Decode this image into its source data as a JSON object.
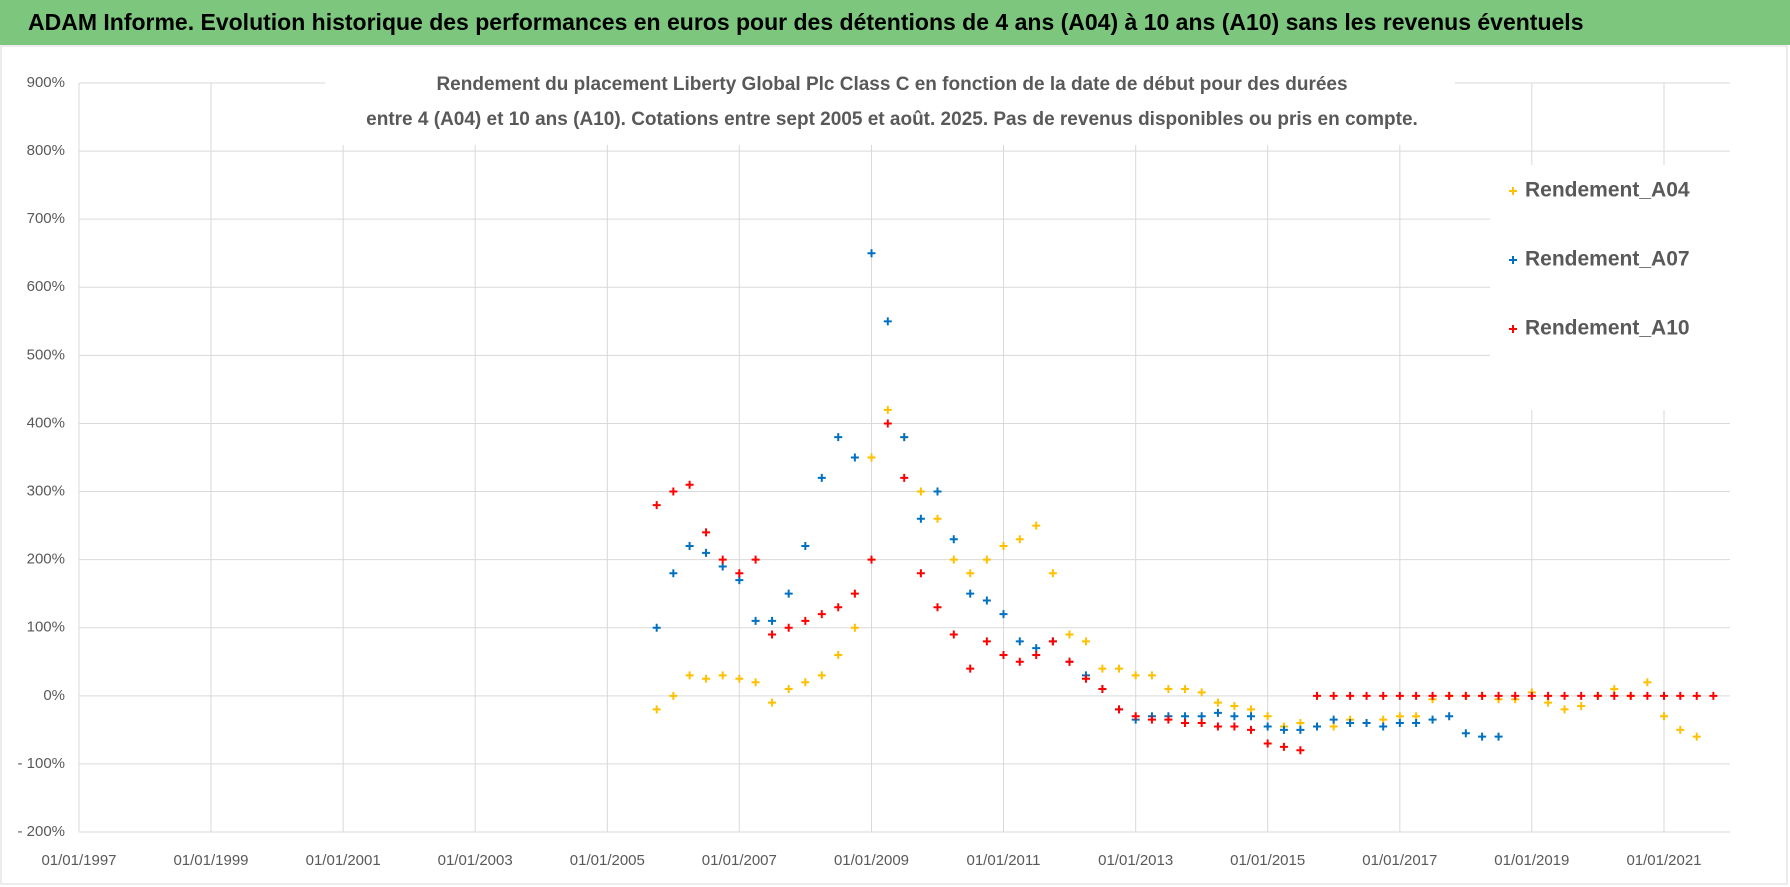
{
  "header_title": "ADAM Informe. Evolution historique des performances en euros pour des détentions de 4 ans (A04) à 10 ans (A10) sans les revenus éventuels",
  "chart_data": {
    "type": "scatter",
    "title": "Rendement du placement Liberty Global Plc Class C en fonction de la date de début pour des durées",
    "subtitle": "entre 4 (A04) et 10 ans (A10).  Cotations entre sept 2005 et août. 2025.  Pas de revenus disponibles ou pris en compte.",
    "x": [
      "2005-10-01",
      "2006-01-01",
      "2006-04-01",
      "2006-07-01",
      "2006-10-01",
      "2007-01-01",
      "2007-04-01",
      "2007-07-01",
      "2007-10-01",
      "2008-01-01",
      "2008-04-01",
      "2008-07-01",
      "2008-10-01",
      "2009-01-01",
      "2009-04-01",
      "2009-07-01",
      "2009-10-01",
      "2010-01-01",
      "2010-04-01",
      "2010-07-01",
      "2010-10-01",
      "2011-01-01",
      "2011-04-01",
      "2011-07-01",
      "2011-10-01",
      "2012-01-01",
      "2012-04-01",
      "2012-07-01",
      "2012-10-01",
      "2013-01-01",
      "2013-04-01",
      "2013-07-01",
      "2013-10-01",
      "2014-01-01",
      "2014-04-01",
      "2014-07-01",
      "2014-10-01",
      "2015-01-01",
      "2015-04-01",
      "2015-07-01",
      "2015-10-01",
      "2016-01-01",
      "2016-04-01",
      "2016-07-01",
      "2016-10-01",
      "2017-01-01",
      "2017-04-01",
      "2017-07-01",
      "2017-10-01",
      "2018-01-01",
      "2018-04-01",
      "2018-07-01",
      "2018-10-01",
      "2019-01-01",
      "2019-04-01",
      "2019-07-01",
      "2019-10-01",
      "2020-01-01",
      "2020-04-01",
      "2020-07-01",
      "2020-10-01",
      "2021-01-01",
      "2021-04-01",
      "2021-07-01",
      "2021-10-01"
    ],
    "series": [
      {
        "name": "Rendement_A04",
        "color": "#ffc000",
        "values": [
          -20,
          0,
          30,
          25,
          30,
          25,
          20,
          -10,
          10,
          20,
          30,
          60,
          100,
          350,
          420,
          380,
          300,
          260,
          200,
          180,
          200,
          220,
          230,
          250,
          180,
          90,
          80,
          40,
          40,
          30,
          30,
          10,
          10,
          5,
          -10,
          -15,
          -20,
          -30,
          -45,
          -40,
          -45,
          -45,
          -35,
          -40,
          -35,
          -30,
          -30,
          -5,
          0,
          0,
          0,
          -5,
          -5,
          5,
          -10,
          -20,
          -15,
          0,
          10,
          0,
          20,
          -30,
          -50,
          -60,
          null
        ]
      },
      {
        "name": "Rendement_A07",
        "color": "#0070c0",
        "values": [
          100,
          180,
          220,
          210,
          190,
          170,
          110,
          110,
          150,
          220,
          320,
          380,
          350,
          650,
          550,
          380,
          260,
          300,
          230,
          150,
          140,
          120,
          80,
          70,
          80,
          50,
          30,
          10,
          -20,
          -35,
          -30,
          -30,
          -30,
          -30,
          -25,
          -30,
          -30,
          -45,
          -50,
          -50,
          -45,
          -35,
          -40,
          -40,
          -45,
          -40,
          -40,
          -35,
          -30,
          -55,
          -60,
          -60,
          null,
          null,
          null,
          null,
          null,
          null,
          null,
          null,
          null,
          null,
          null,
          null,
          null
        ]
      },
      {
        "name": "Rendement_A10",
        "color": "#ff0000",
        "values": [
          280,
          300,
          310,
          240,
          200,
          180,
          200,
          90,
          100,
          110,
          120,
          130,
          150,
          200,
          400,
          320,
          180,
          130,
          90,
          40,
          80,
          60,
          50,
          60,
          80,
          50,
          25,
          10,
          -20,
          -30,
          -35,
          -35,
          -40,
          -40,
          -45,
          -45,
          -50,
          -70,
          -75,
          -80,
          0,
          0,
          0,
          0,
          0,
          0,
          0,
          0,
          0,
          0,
          0,
          0,
          0,
          0,
          0,
          0,
          0,
          0,
          0,
          0,
          0,
          0,
          0,
          0,
          0
        ]
      }
    ],
    "xlim": [
      "1997-01-01",
      "2022-01-01"
    ],
    "xticks": [
      {
        "value": "1997-01-01",
        "label": "01/01/1997"
      },
      {
        "value": "1999-01-01",
        "label": "01/01/1999"
      },
      {
        "value": "2001-01-01",
        "label": "01/01/2001"
      },
      {
        "value": "2003-01-01",
        "label": "01/01/2003"
      },
      {
        "value": "2005-01-01",
        "label": "01/01/2005"
      },
      {
        "value": "2007-01-01",
        "label": "01/01/2007"
      },
      {
        "value": "2009-01-01",
        "label": "01/01/2009"
      },
      {
        "value": "2011-01-01",
        "label": "01/01/2011"
      },
      {
        "value": "2013-01-01",
        "label": "01/01/2013"
      },
      {
        "value": "2015-01-01",
        "label": "01/01/2015"
      },
      {
        "value": "2017-01-01",
        "label": "01/01/2017"
      },
      {
        "value": "2019-01-01",
        "label": "01/01/2019"
      },
      {
        "value": "2021-01-01",
        "label": "01/01/2021"
      }
    ],
    "ylim": [
      -200,
      900
    ],
    "yticks": [
      {
        "value": -200,
        "label": "- 200%"
      },
      {
        "value": -100,
        "label": "- 100%"
      },
      {
        "value": 0,
        "label": "0%"
      },
      {
        "value": 100,
        "label": "100%"
      },
      {
        "value": 200,
        "label": "200%"
      },
      {
        "value": 300,
        "label": "300%"
      },
      {
        "value": 400,
        "label": "400%"
      },
      {
        "value": 500,
        "label": "500%"
      },
      {
        "value": 600,
        "label": "600%"
      },
      {
        "value": 700,
        "label": "700%"
      },
      {
        "value": 800,
        "label": "800%"
      },
      {
        "value": 900,
        "label": "900%"
      }
    ],
    "grid": true,
    "legend": "upper right"
  }
}
